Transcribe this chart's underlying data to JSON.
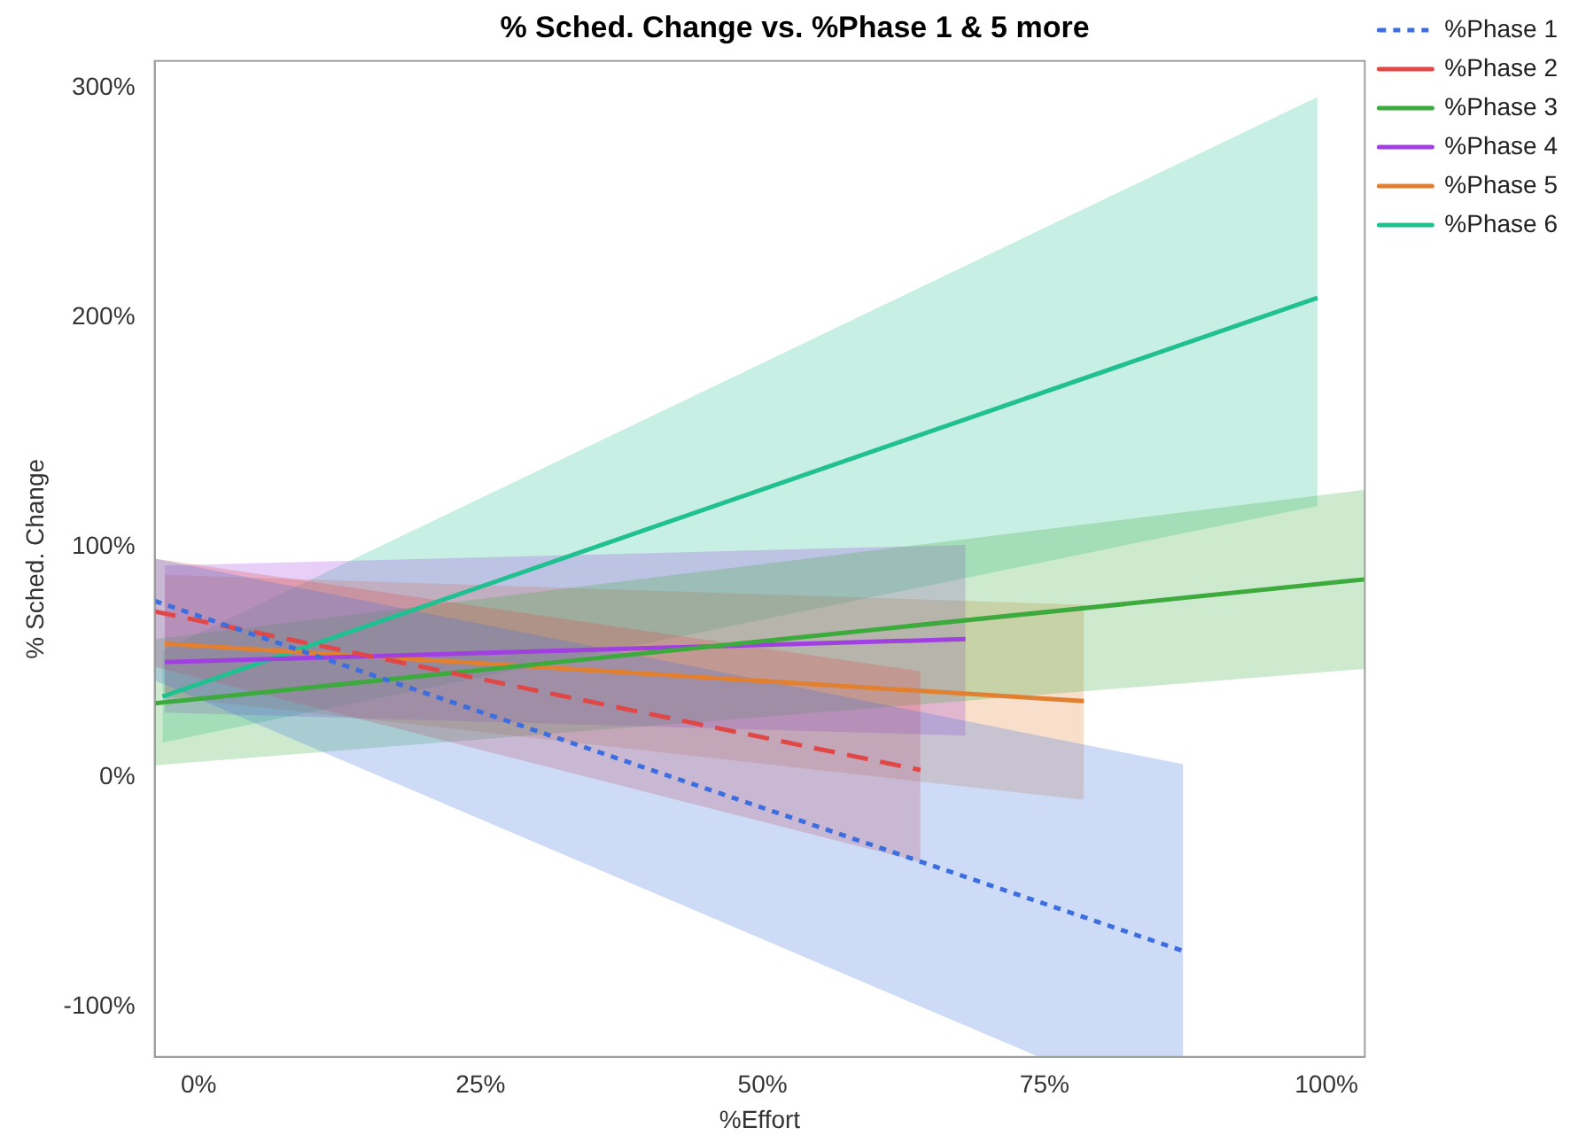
{
  "chart_data": {
    "type": "line",
    "title": "% Sched. Change vs. %Phase 1 & 5 more",
    "xlabel": "%Effort",
    "ylabel": "% Sched. Change",
    "xlim": [
      -3.9,
      103.4
    ],
    "ylim": [
      -121.9,
      311.7
    ],
    "xticks": [
      {
        "value": 0,
        "label": "0%"
      },
      {
        "value": 25,
        "label": "25%"
      },
      {
        "value": 50,
        "label": "50%"
      },
      {
        "value": 75,
        "label": "75%"
      },
      {
        "value": 100,
        "label": "100%"
      }
    ],
    "yticks": [
      {
        "value": -100,
        "label": "-100%"
      },
      {
        "value": 0,
        "label": "0%"
      },
      {
        "value": 100,
        "label": "100%"
      },
      {
        "value": 200,
        "label": "200%"
      },
      {
        "value": 300,
        "label": "300%"
      }
    ],
    "grid": false,
    "legend": "top right",
    "marker": "none",
    "series": [
      {
        "name": "%Phase 1",
        "color": "#3c6ee0",
        "line_style": "dotted",
        "x": [
          -3.9,
          74.5,
          87.3
        ],
        "values": [
          76.6,
          -54.4,
          -75.8
        ],
        "lower": [
          42,
          -121.9,
          -121.9
        ],
        "upper": [
          95,
          18,
          5.5
        ]
      },
      {
        "name": "%Phase 2",
        "color": "#e04848",
        "line_style": "dashed",
        "x": [
          -3.9,
          64
        ],
        "values": [
          72,
          3
        ],
        "lower": [
          48,
          -37
        ],
        "upper": [
          95,
          46
        ]
      },
      {
        "name": "%Phase 3",
        "color": "#3caa3c",
        "line_style": "solid",
        "x": [
          -3.9,
          103.4
        ],
        "values": [
          32,
          86
        ],
        "lower": [
          5,
          47
        ],
        "upper": [
          60,
          125
        ]
      },
      {
        "name": "%Phase 4",
        "color": "#a040e0",
        "line_style": "solid",
        "x": [
          -3,
          68
        ],
        "values": [
          50,
          60
        ],
        "lower": [
          28,
          18
        ],
        "upper": [
          92,
          101
        ]
      },
      {
        "name": "%Phase 5",
        "color": "#e08030",
        "line_style": "solid",
        "x": [
          -3,
          78.5
        ],
        "values": [
          58,
          33
        ],
        "lower": [
          35,
          -10
        ],
        "upper": [
          88,
          75
        ]
      },
      {
        "name": "%Phase 6",
        "color": "#20c090",
        "line_style": "solid",
        "x": [
          -3.2,
          99.2
        ],
        "values": [
          35,
          208.6
        ],
        "lower": [
          15,
          118
        ],
        "upper": [
          55,
          296
        ]
      }
    ]
  }
}
